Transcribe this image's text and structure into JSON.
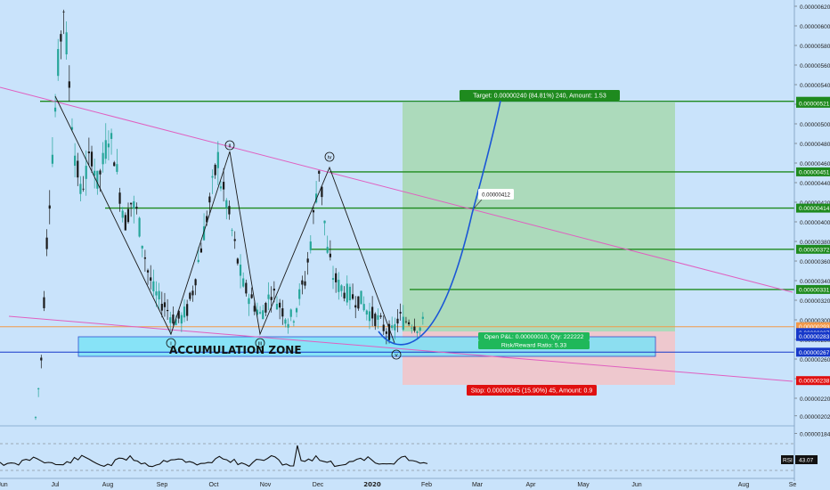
{
  "chart_data": {
    "type": "candlestick",
    "instrument_note": "",
    "x_ticks": [
      "Jun",
      "Jul",
      "Aug",
      "Sep",
      "Oct",
      "Nov",
      "Dec",
      "2020",
      "Feb",
      "Mar",
      "Apr",
      "May",
      "Jun",
      "Aug",
      "Se"
    ],
    "y_ticks": [
      "0.00000620",
      "0.00000600",
      "0.00000580",
      "0.00000560",
      "0.00000540",
      "0.00000520",
      "0.00000500",
      "0.00000480",
      "0.00000460",
      "0.00000440",
      "0.00000420",
      "0.00000400",
      "0.00000380",
      "0.00000360",
      "0.00000340",
      "0.00000320",
      "0.00000300",
      "0.00000280",
      "0.00000260",
      "0.00000240",
      "0.00000220",
      "0.00000202",
      "0.00000184"
    ],
    "ylim": [
      1.8e-06,
      6.35e-06
    ],
    "price_levels": [
      {
        "label": "0.00000523",
        "value": 5.23e-06,
        "color": "#1e8a1e"
      },
      {
        "label": "0.00000521",
        "value": 5.21e-06,
        "color": "#1e8a1e"
      },
      {
        "label": "0.00000451",
        "value": 4.51e-06,
        "color": "#1e8a1e"
      },
      {
        "label": "0.00000414",
        "value": 4.14e-06,
        "color": "#1e8a1e"
      },
      {
        "label": "0.00000372",
        "value": 3.72e-06,
        "color": "#1e8a1e"
      },
      {
        "label": "0.00000331",
        "value": 3.31e-06,
        "color": "#1e8a1e"
      },
      {
        "label": "0.00000293",
        "value": 2.93e-06,
        "color": "#f2994a"
      },
      {
        "label": "0.00000287",
        "value": 2.87e-06,
        "color": "#1638c9"
      },
      {
        "label": "0.00000283",
        "value": 2.83e-06,
        "color": "#1638c9"
      },
      {
        "label": "0.00000267",
        "value": 2.67e-06,
        "color": "#1638c9"
      },
      {
        "label": "0.00000238",
        "value": 2.38e-06,
        "color": "#e01010"
      }
    ],
    "price_path": [
      [
        0,
        200
      ],
      [
        2,
        260
      ],
      [
        4,
        380
      ],
      [
        6,
        470
      ],
      [
        8,
        560
      ],
      [
        10,
        620
      ],
      [
        12,
        540
      ],
      [
        14,
        470
      ],
      [
        16,
        430
      ],
      [
        18,
        450
      ],
      [
        20,
        470
      ],
      [
        22,
        440
      ],
      [
        24,
        460
      ],
      [
        26,
        490
      ],
      [
        28,
        470
      ],
      [
        30,
        430
      ],
      [
        32,
        400
      ],
      [
        34,
        420
      ],
      [
        36,
        410
      ],
      [
        38,
        380
      ],
      [
        40,
        350
      ],
      [
        42,
        330
      ],
      [
        44,
        320
      ],
      [
        46,
        315
      ],
      [
        48,
        305
      ],
      [
        50,
        300
      ],
      [
        52,
        302
      ],
      [
        54,
        310
      ],
      [
        56,
        330
      ],
      [
        58,
        360
      ],
      [
        60,
        390
      ],
      [
        62,
        420
      ],
      [
        64,
        450
      ],
      [
        65,
        465
      ],
      [
        66,
        440
      ],
      [
        68,
        420
      ],
      [
        70,
        390
      ],
      [
        72,
        360
      ],
      [
        74,
        335
      ],
      [
        76,
        325
      ],
      [
        78,
        315
      ],
      [
        80,
        305
      ],
      [
        82,
        315
      ],
      [
        84,
        330
      ],
      [
        86,
        320
      ],
      [
        88,
        310
      ],
      [
        90,
        300
      ],
      [
        92,
        305
      ],
      [
        94,
        325
      ],
      [
        96,
        340
      ],
      [
        98,
        380
      ],
      [
        100,
        430
      ],
      [
        101,
        455
      ],
      [
        102,
        430
      ],
      [
        104,
        370
      ],
      [
        106,
        345
      ],
      [
        108,
        335
      ],
      [
        110,
        330
      ],
      [
        112,
        325
      ],
      [
        114,
        322
      ],
      [
        116,
        320
      ],
      [
        118,
        310
      ],
      [
        120,
        305
      ],
      [
        122,
        300
      ],
      [
        124,
        292
      ],
      [
        126,
        288
      ],
      [
        127,
        286
      ],
      [
        128,
        292
      ],
      [
        129,
        300
      ],
      [
        130,
        302
      ],
      [
        131,
        298
      ],
      [
        133,
        300
      ],
      [
        135,
        296
      ],
      [
        137,
        292
      ],
      [
        138,
        295
      ]
    ],
    "rsi": {
      "label": "RSI",
      "value": "43.07"
    },
    "annotations": {
      "target": "Target: 0.00000240 (84.81%) 240, Amount: 1.53",
      "stop": "Stop: 0.00000045 (15.90%) 45, Amount: 0.9",
      "open_pl": "Open P&L: 0.00000010, Qty: 222222",
      "risk_reward": "Risk/Reward Ratio: 5.33",
      "zone": "ACCUMULATION ZONE",
      "callout": "0.00000412",
      "waves": [
        "i",
        "ii",
        "iii",
        "iv",
        "v"
      ]
    }
  },
  "colors": {
    "background": "#c9e3fb",
    "up": "#26a69a",
    "down": "#1a1a1a",
    "profit_zone": "#a8d8b4",
    "loss_zone": "#f2c4c9",
    "accumulation_zone": "#7ce3f7",
    "trendline": "#e060c0",
    "curve": "#1a56d6",
    "level_green": "#1e8a1e"
  }
}
